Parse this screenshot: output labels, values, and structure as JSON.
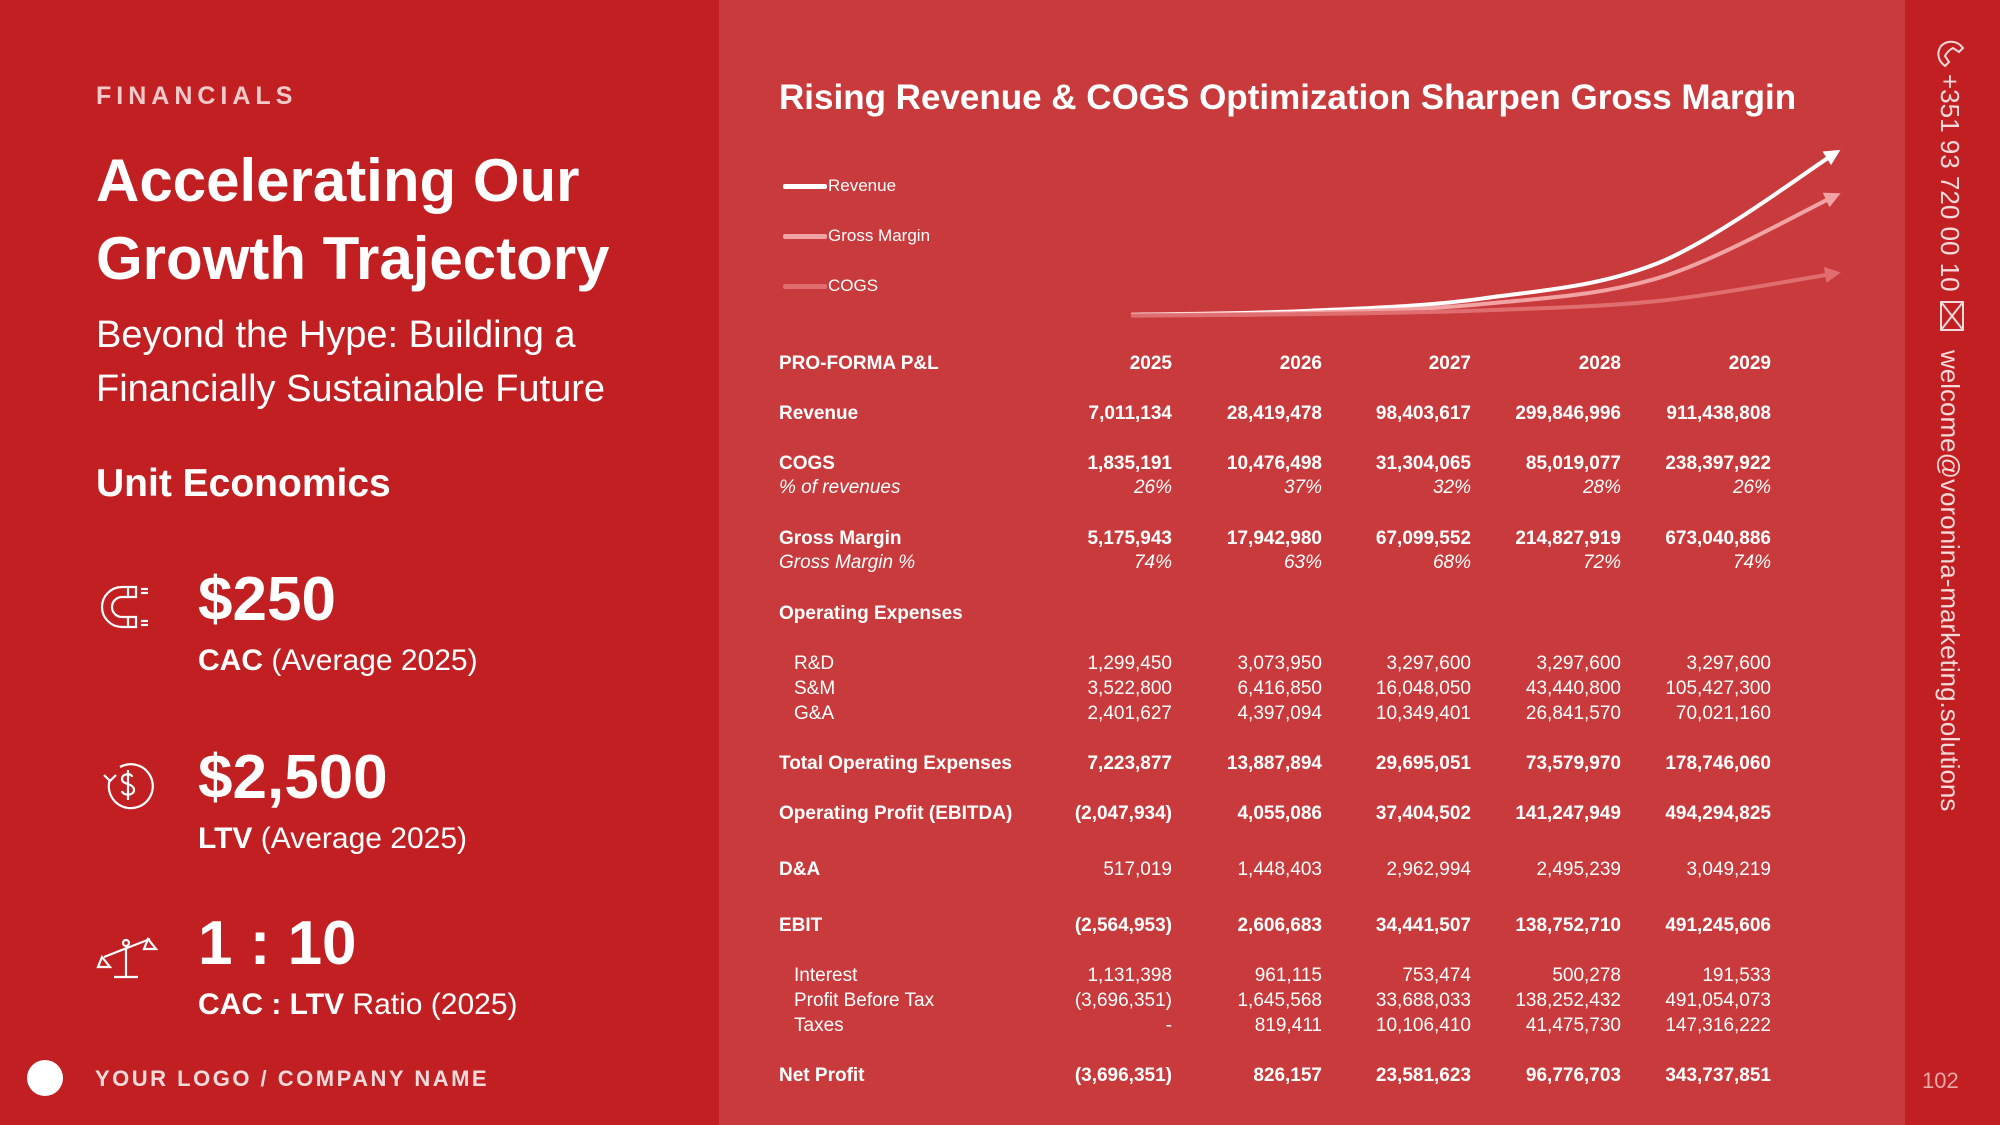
{
  "left": {
    "eyebrow": "FINANCIALS",
    "headline": "Accelerating Our Growth Trajectory",
    "subhead": "Beyond the Hype: Building a Financially Sustainable Future",
    "unit_title": "Unit Economics",
    "metrics": [
      {
        "value": "$250",
        "label_bold": "CAC",
        "label_rest": " (Average 2025)",
        "icon": "magnet-icon"
      },
      {
        "value": "$2,500",
        "label_bold": "LTV",
        "label_rest": " (Average 2025)",
        "icon": "dollar-cycle-icon"
      },
      {
        "value": "1 : 10",
        "label_bold": "CAC : LTV",
        "label_rest": " Ratio (2025)",
        "icon": "scale-icon"
      }
    ],
    "logo_text": "YOUR LOGO / COMPANY NAME"
  },
  "right": {
    "chart_title": "Rising Revenue & COGS Optimization Sharpen Gross Margin",
    "legend": [
      "Revenue",
      "Gross Margin",
      "COGS"
    ]
  },
  "chart_data": {
    "type": "line",
    "title": "Rising Revenue & COGS Optimization Sharpen Gross Margin",
    "x": [
      "2025",
      "2026",
      "2027",
      "2028",
      "2029"
    ],
    "series": [
      {
        "name": "Revenue",
        "values": [
          7011134,
          28419478,
          98403617,
          299846996,
          911438808
        ],
        "color": "#ffffff"
      },
      {
        "name": "Gross Margin",
        "values": [
          5175943,
          17942980,
          67099552,
          214827919,
          673040886
        ],
        "color": "#f2a3a4"
      },
      {
        "name": "COGS",
        "values": [
          1835191,
          10476498,
          31304065,
          85019077,
          238397922
        ],
        "color": "#e06d6f"
      }
    ]
  },
  "table": {
    "header": {
      "label": "PRO-FORMA P&L",
      "cols": [
        "2025",
        "2026",
        "2027",
        "2028",
        "2029"
      ]
    },
    "rows": [
      {
        "label": "Revenue",
        "values": [
          "7,011,134",
          "28,419,478",
          "98,403,617",
          "299,846,996",
          "911,438,808"
        ]
      },
      {
        "label": "COGS",
        "values": [
          "1,835,191",
          "10,476,498",
          "31,304,065",
          "85,019,077",
          "238,397,922"
        ]
      },
      {
        "label": "% of revenues",
        "values": [
          "26%",
          "37%",
          "32%",
          "28%",
          "26%"
        ]
      },
      {
        "label": "Gross Margin",
        "values": [
          "5,175,943",
          "17,942,980",
          "67,099,552",
          "214,827,919",
          "673,040,886"
        ]
      },
      {
        "label": "Gross Margin %",
        "values": [
          "74%",
          "63%",
          "68%",
          "72%",
          "74%"
        ]
      },
      {
        "label": "Operating Expenses",
        "values": [
          "",
          "",
          "",
          "",
          ""
        ]
      },
      {
        "label": "R&D",
        "values": [
          "1,299,450",
          "3,073,950",
          "3,297,600",
          "3,297,600",
          "3,297,600"
        ]
      },
      {
        "label": "S&M",
        "values": [
          "3,522,800",
          "6,416,850",
          "16,048,050",
          "43,440,800",
          "105,427,300"
        ]
      },
      {
        "label": "G&A",
        "values": [
          "2,401,627",
          "4,397,094",
          "10,349,401",
          "26,841,570",
          "70,021,160"
        ]
      },
      {
        "label": "Total Operating Expenses",
        "values": [
          "7,223,877",
          "13,887,894",
          "29,695,051",
          "73,579,970",
          "178,746,060"
        ]
      },
      {
        "label": "Operating Profit (EBITDA)",
        "values": [
          "(2,047,934)",
          "4,055,086",
          "37,404,502",
          "141,247,949",
          "494,294,825"
        ]
      },
      {
        "label": "D&A",
        "values": [
          "517,019",
          "1,448,403",
          "2,962,994",
          "2,495,239",
          "3,049,219"
        ]
      },
      {
        "label": "EBIT",
        "values": [
          "(2,564,953)",
          "2,606,683",
          "34,441,507",
          "138,752,710",
          "491,245,606"
        ]
      },
      {
        "label": "Interest",
        "values": [
          "1,131,398",
          "961,115",
          "753,474",
          "500,278",
          "191,533"
        ]
      },
      {
        "label": "Profit Before Tax",
        "values": [
          "(3,696,351)",
          "1,645,568",
          "33,688,033",
          "138,252,432",
          "491,054,073"
        ]
      },
      {
        "label": "Taxes",
        "values": [
          "-",
          "819,411",
          "10,106,410",
          "41,475,730",
          "147,316,222"
        ]
      },
      {
        "label": "Net Profit",
        "values": [
          "(3,696,351)",
          "826,157",
          "23,581,623",
          "96,776,703",
          "343,737,851"
        ]
      }
    ]
  },
  "contact": {
    "phone": "+351 93 720 00 10",
    "email": "welcome@voronina-marketing.solutions"
  },
  "page_number": "102",
  "colors": {
    "left_bg": "#c11f22",
    "right_bg": "#c83a3c",
    "accent_light": "#f2a3a4"
  }
}
